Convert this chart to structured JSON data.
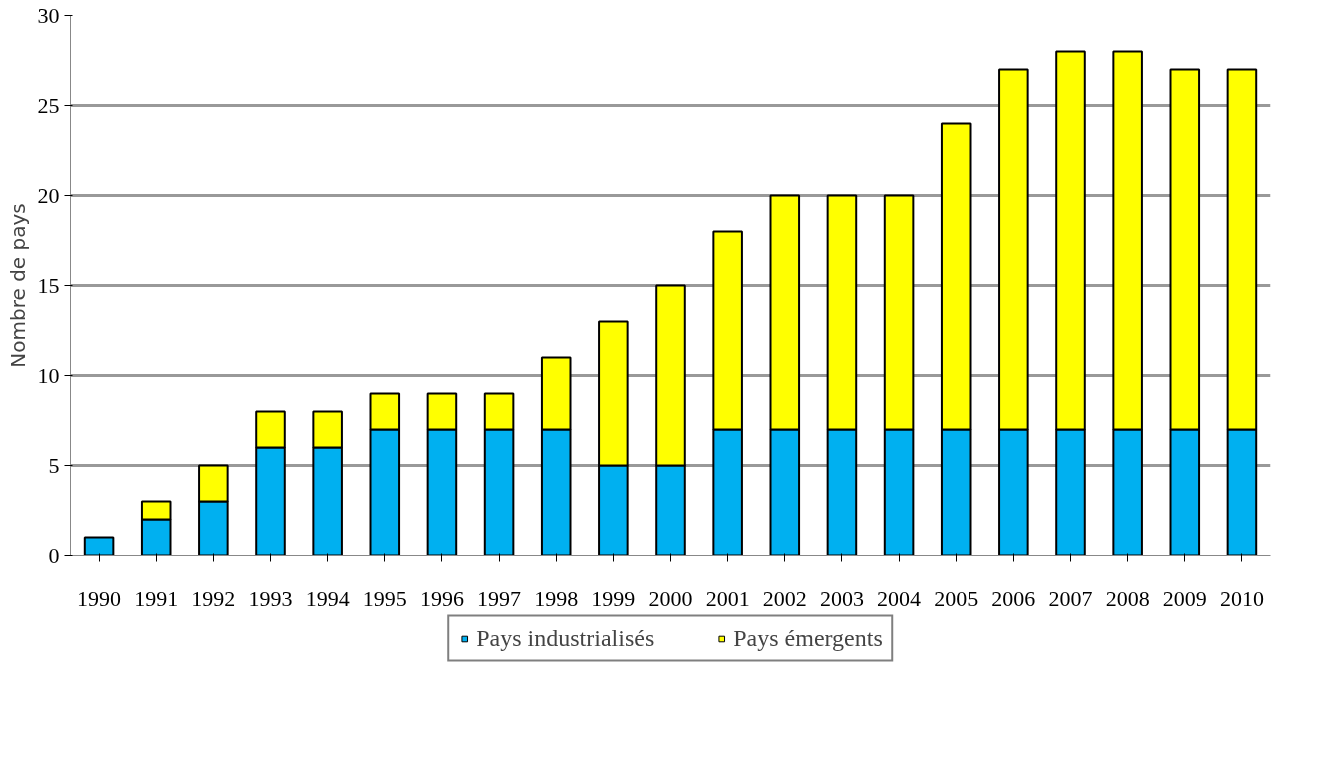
{
  "chart_data": {
    "type": "bar",
    "stacked": true,
    "ylabel": "Nombre de pays",
    "categories": [
      "1990",
      "1991",
      "1992",
      "1993",
      "1994",
      "1995",
      "1996",
      "1997",
      "1998",
      "1999",
      "2000",
      "2001",
      "2002",
      "2003",
      "2004",
      "2005",
      "2006",
      "2007",
      "2008",
      "2009",
      "2010"
    ],
    "series": [
      {
        "name": "Pays industrialisés",
        "color": "#00b0f0",
        "values": [
          1,
          2,
          3,
          6,
          6,
          7,
          7,
          7,
          7,
          5,
          5,
          7,
          7,
          7,
          7,
          7,
          7,
          7,
          7,
          7,
          7
        ]
      },
      {
        "name": "Pays émergents",
        "color": "#ffff00",
        "values": [
          null,
          1,
          2,
          2,
          2,
          2,
          2,
          2,
          4,
          8,
          10,
          11,
          13,
          13,
          13,
          17,
          20,
          21,
          21,
          20,
          20
        ]
      }
    ],
    "ylim": [
      0,
      30
    ],
    "yticks": [
      0,
      5,
      10,
      15,
      20,
      25,
      30
    ],
    "grid": "y",
    "legend": "bottom"
  }
}
